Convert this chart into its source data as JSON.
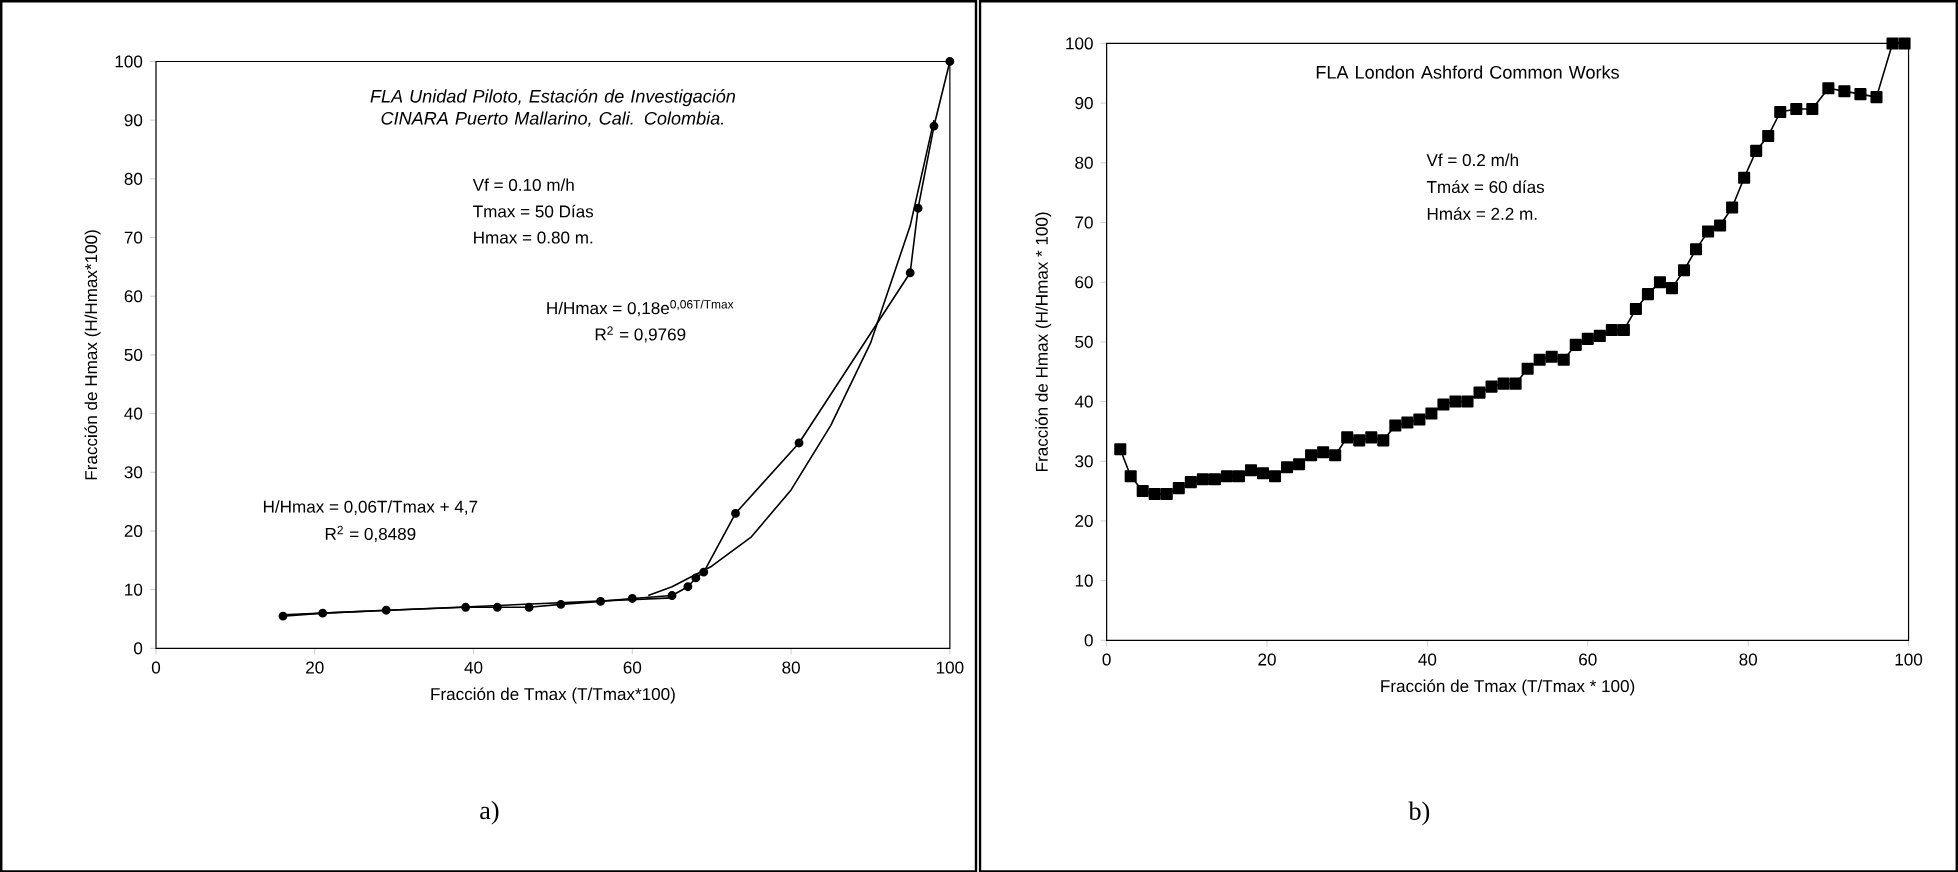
{
  "chart_data": [
    {
      "type": "line",
      "title": "FLA Unidad Piloto, Estación de Investigación CINARA Puerto Mallarino, Cali. Colombia.",
      "xlabel": "Fracción de Tmax (T/Tmax*100)",
      "ylabel": "Fracción de Hmax (H/Hmax*100)",
      "xlim": [
        0,
        100
      ],
      "ylim": [
        0,
        100
      ],
      "xticks": [
        0,
        20,
        40,
        60,
        80,
        100
      ],
      "yticks": [
        0,
        10,
        20,
        30,
        40,
        50,
        60,
        70,
        80,
        90,
        100
      ],
      "series": [
        {
          "color": "#000000",
          "marker": "circle",
          "line_style": "solid",
          "x": [
            16,
            21,
            29,
            39,
            43,
            47,
            51,
            56,
            60,
            65,
            67,
            68,
            69,
            73,
            81,
            95,
            96,
            98,
            100
          ],
          "values": [
            5.5,
            6,
            6.5,
            7,
            7,
            7,
            7.5,
            8,
            8.5,
            9,
            10.5,
            12,
            13,
            23,
            35,
            64,
            75,
            89,
            100
          ]
        },
        {
          "type": "line",
          "color": "#000000",
          "marker": "none",
          "line_style": "solid",
          "x": [
            62,
            65,
            70,
            75,
            80,
            85,
            90,
            95,
            98
          ],
          "values": [
            9,
            10.5,
            14,
            19,
            27,
            38,
            52,
            72,
            90
          ]
        },
        {
          "type": "line",
          "color": "#000000",
          "marker": "none",
          "line_style": "solid",
          "x": [
            16,
            65
          ],
          "values": [
            5.7,
            8.6
          ]
        }
      ],
      "annotations": [
        "Vf = 0.10 m/h",
        "Tmax = 50 Días",
        "Hmax = 0.80 m.",
        "H/Hmax = 0,18e$^{0,06T/Tmax}$",
        "R$^{2}$ = 0,9769",
        "H/Hmax = 0,06T/Tmax + 4,7",
        "R$^{2}$ = 0,8489",
        "a)"
      ]
    },
    {
      "type": "line",
      "title": "FLA London Ashford Common Works",
      "xlabel": "Fracción de Tmax (T/Tmax * 100)",
      "ylabel": "Fracción de Hmax (H/Hmax * 100)",
      "xlim": [
        0,
        100
      ],
      "ylim": [
        0,
        100
      ],
      "xticks": [
        0,
        20,
        40,
        60,
        80,
        100
      ],
      "yticks": [
        0,
        10,
        20,
        30,
        40,
        50,
        60,
        70,
        80,
        90,
        100
      ],
      "series": [
        {
          "color": "#000000",
          "marker": "square",
          "line_style": "solid",
          "x": [
            1.7,
            3,
            4.5,
            6,
            7.5,
            9,
            10.5,
            12,
            13.5,
            15,
            16.5,
            18,
            19.5,
            21,
            22.5,
            24,
            25.5,
            27,
            28.5,
            30,
            31.5,
            33,
            34.5,
            36,
            37.5,
            39,
            40.5,
            42,
            43.5,
            45,
            46.5,
            48,
            49.5,
            51,
            52.5,
            54,
            55.5,
            57,
            58.5,
            60,
            61.5,
            63,
            64.5,
            66,
            67.5,
            69,
            70.5,
            72,
            73.5,
            75,
            76.5,
            78,
            79.5,
            81,
            82.5,
            84,
            86,
            88,
            90,
            92,
            94,
            96,
            98,
            99.5
          ],
          "values": [
            32,
            27.5,
            25,
            24.5,
            24.5,
            25.5,
            26.5,
            27,
            27,
            27.5,
            27.5,
            28.5,
            28,
            27.5,
            29,
            29.5,
            31,
            31.5,
            31,
            34,
            33.5,
            34,
            33.5,
            36,
            36.5,
            37,
            38,
            39.5,
            40,
            40,
            41.5,
            42.5,
            43,
            43,
            45.5,
            47,
            47.5,
            47,
            49.5,
            50.5,
            51,
            52,
            52,
            55.5,
            58,
            60,
            59,
            62,
            65.5,
            68.5,
            69.5,
            72.5,
            77.5,
            82,
            84.5,
            88.5,
            89,
            89,
            92.5,
            92,
            91.5,
            91,
            100,
            100
          ]
        }
      ],
      "annotations": [
        "Vf = 0.2 m/h",
        "Tmáx = 60 días",
        "Hmáx = 2.2 m.",
        "b)"
      ]
    }
  ]
}
